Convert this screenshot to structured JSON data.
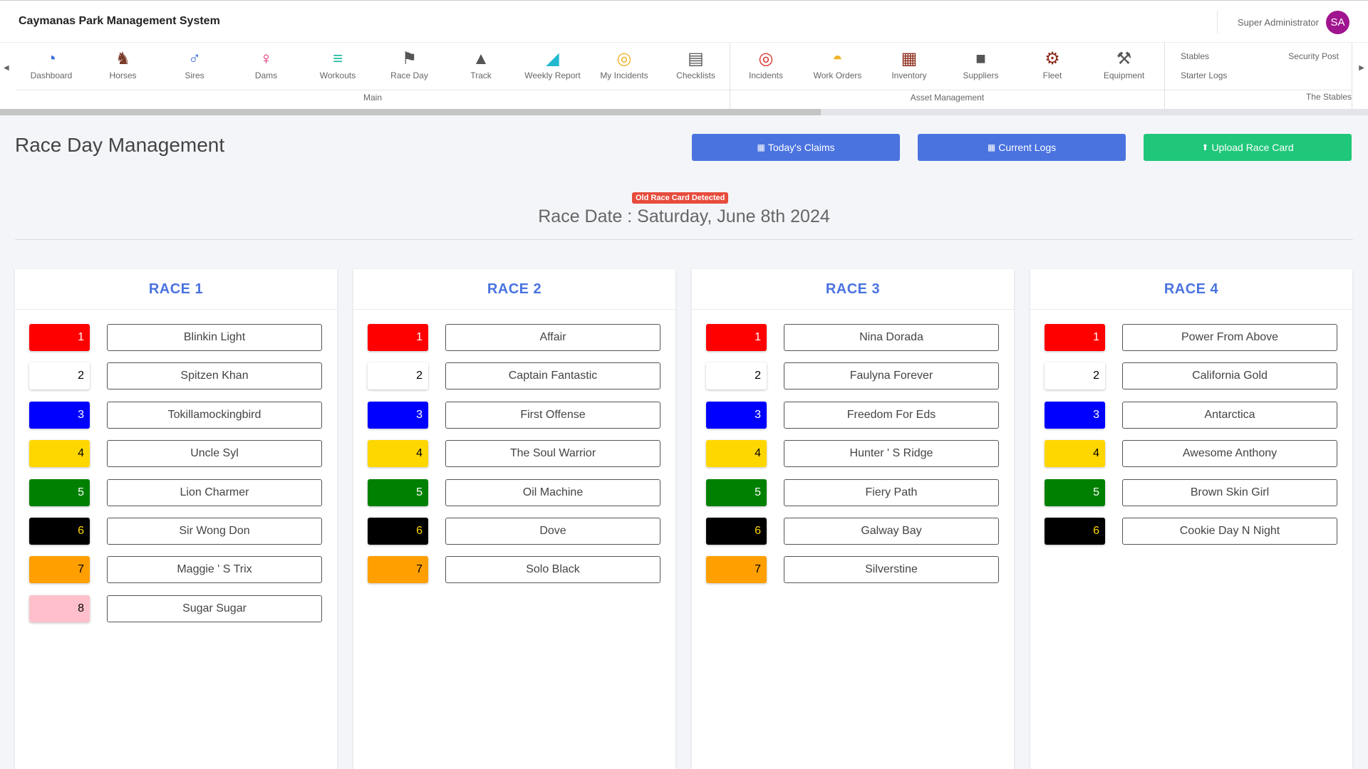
{
  "app": {
    "title": "Caymanas Park Management System"
  },
  "user": {
    "name": "Super Administrator",
    "initials": "SA"
  },
  "ribbon": {
    "main": {
      "label": "Main",
      "items": [
        {
          "label": "Dashboard",
          "icon": "dashboard-icon",
          "color": "#3b6fd8"
        },
        {
          "label": "Horses",
          "icon": "horse-icon",
          "color": "#7b3b2a"
        },
        {
          "label": "Sires",
          "icon": "male-icon",
          "color": "#3b6fd8"
        },
        {
          "label": "Dams",
          "icon": "female-icon",
          "color": "#e0206f"
        },
        {
          "label": "Workouts",
          "icon": "dumbbell-icon",
          "color": "#20b9a0"
        },
        {
          "label": "Race Day",
          "icon": "checkered-flag-icon",
          "color": "#555555"
        },
        {
          "label": "Track",
          "icon": "road-icon",
          "color": "#555555"
        },
        {
          "label": "Weekly Report",
          "icon": "area-chart-icon",
          "color": "#20b9d0"
        },
        {
          "label": "My Incidents",
          "icon": "life-ring-icon",
          "color": "#f0b429"
        },
        {
          "label": "Checklists",
          "icon": "clipboard-icon",
          "color": "#555555"
        }
      ]
    },
    "asset": {
      "label": "Asset Management",
      "items": [
        {
          "label": "Incidents",
          "icon": "life-ring-icon",
          "color": "#d9342b"
        },
        {
          "label": "Work Orders",
          "icon": "hard-hat-icon",
          "color": "#f0b429"
        },
        {
          "label": "Inventory",
          "icon": "pallet-icon",
          "color": "#8b2b1a"
        },
        {
          "label": "Suppliers",
          "icon": "truck-icon",
          "color": "#555555"
        },
        {
          "label": "Fleet",
          "icon": "tractor-icon",
          "color": "#8b2b1a"
        },
        {
          "label": "Equipment",
          "icon": "hammer-icon",
          "color": "#555555"
        }
      ]
    },
    "stables": {
      "label": "The Stables",
      "links": [
        "Stables",
        "Security Post",
        "Starter Logs"
      ]
    },
    "scroll_progress": 0.6
  },
  "header": {
    "title": "Race Day Management",
    "buttons": {
      "claims": "Today's Claims",
      "logs": "Current Logs",
      "upload": "Upload Race Card"
    },
    "alert": "Old Race Card Detected",
    "race_date": "Race Date : Saturday, June 8th 2024"
  },
  "races": [
    {
      "title": "RACE 1",
      "runners": [
        {
          "num": "1",
          "name": "Blinkin Light",
          "bg": "#ff0000",
          "fg": "#ffffff"
        },
        {
          "num": "2",
          "name": "Spitzen Khan",
          "bg": "#ffffff",
          "fg": "#000000"
        },
        {
          "num": "3",
          "name": "Tokillamockingbird",
          "bg": "#0000ff",
          "fg": "#ffffff"
        },
        {
          "num": "4",
          "name": "Uncle Syl",
          "bg": "#ffd700",
          "fg": "#000000"
        },
        {
          "num": "5",
          "name": "Lion Charmer",
          "bg": "#008000",
          "fg": "#ffffff"
        },
        {
          "num": "6",
          "name": "Sir Wong Don",
          "bg": "#000000",
          "fg": "#ffd700"
        },
        {
          "num": "7",
          "name": "Maggie ' S Trix",
          "bg": "#ff9f00",
          "fg": "#000000"
        },
        {
          "num": "8",
          "name": "Sugar Sugar",
          "bg": "#ffc0cb",
          "fg": "#000000"
        }
      ]
    },
    {
      "title": "RACE 2",
      "runners": [
        {
          "num": "1",
          "name": "Affair",
          "bg": "#ff0000",
          "fg": "#ffffff"
        },
        {
          "num": "2",
          "name": "Captain Fantastic",
          "bg": "#ffffff",
          "fg": "#000000"
        },
        {
          "num": "3",
          "name": "First Offense",
          "bg": "#0000ff",
          "fg": "#ffffff"
        },
        {
          "num": "4",
          "name": "The Soul Warrior",
          "bg": "#ffd700",
          "fg": "#000000"
        },
        {
          "num": "5",
          "name": "Oil Machine",
          "bg": "#008000",
          "fg": "#ffffff"
        },
        {
          "num": "6",
          "name": "Dove",
          "bg": "#000000",
          "fg": "#ffd700"
        },
        {
          "num": "7",
          "name": "Solo Black",
          "bg": "#ff9f00",
          "fg": "#000000"
        }
      ]
    },
    {
      "title": "RACE 3",
      "runners": [
        {
          "num": "1",
          "name": "Nina Dorada",
          "bg": "#ff0000",
          "fg": "#ffffff"
        },
        {
          "num": "2",
          "name": "Faulyna Forever",
          "bg": "#ffffff",
          "fg": "#000000"
        },
        {
          "num": "3",
          "name": "Freedom For Eds",
          "bg": "#0000ff",
          "fg": "#ffffff"
        },
        {
          "num": "4",
          "name": "Hunter ' S Ridge",
          "bg": "#ffd700",
          "fg": "#000000"
        },
        {
          "num": "5",
          "name": "Fiery Path",
          "bg": "#008000",
          "fg": "#ffffff"
        },
        {
          "num": "6",
          "name": "Galway Bay",
          "bg": "#000000",
          "fg": "#ffd700"
        },
        {
          "num": "7",
          "name": "Silverstine",
          "bg": "#ff9f00",
          "fg": "#000000"
        }
      ]
    },
    {
      "title": "RACE 4",
      "runners": [
        {
          "num": "1",
          "name": "Power From Above",
          "bg": "#ff0000",
          "fg": "#ffffff"
        },
        {
          "num": "2",
          "name": "California Gold",
          "bg": "#ffffff",
          "fg": "#000000"
        },
        {
          "num": "3",
          "name": "Antarctica",
          "bg": "#0000ff",
          "fg": "#ffffff"
        },
        {
          "num": "4",
          "name": "Awesome Anthony",
          "bg": "#ffd700",
          "fg": "#000000"
        },
        {
          "num": "5",
          "name": "Brown Skin Girl",
          "bg": "#008000",
          "fg": "#ffffff"
        },
        {
          "num": "6",
          "name": "Cookie Day N Night",
          "bg": "#000000",
          "fg": "#ffd700"
        }
      ]
    }
  ]
}
